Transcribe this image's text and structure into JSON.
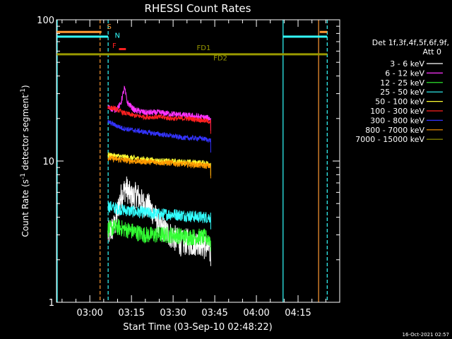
{
  "chart_data": {
    "type": "line",
    "title": "RHESSI Count Rates",
    "xlabel": "Start Time (03-Sep-10 02:48:22)",
    "ylabel_parts": [
      "Count Rate (s",
      "-1",
      " detector segment",
      "-1",
      ")"
    ],
    "yscale": "log",
    "ylim": [
      1,
      100
    ],
    "xlim_min": [
      -12,
      90
    ],
    "y_ticks": [
      {
        "value": 1,
        "label": "1"
      },
      {
        "value": 10,
        "label": "10"
      },
      {
        "value": 100,
        "label": "100"
      }
    ],
    "x_ticks": [
      {
        "min": 0,
        "label": "03:00"
      },
      {
        "min": 15,
        "label": "03:15"
      },
      {
        "min": 30,
        "label": "03:30"
      },
      {
        "min": 45,
        "label": "03:45"
      },
      {
        "min": 60,
        "label": "04:00"
      },
      {
        "min": 75,
        "label": "04:15"
      }
    ],
    "legend_header": [
      "Det 1f,3f,4f,5f,6f,9f,",
      "Att 0"
    ],
    "series": [
      {
        "name": "3 - 6 keV",
        "color": "#ffffff",
        "start": 6.5,
        "end": 43.5,
        "points": [
          [
            6.5,
            3.0
          ],
          [
            9,
            3.5
          ],
          [
            11,
            5.5
          ],
          [
            13,
            6.5
          ],
          [
            15,
            5.5
          ],
          [
            17,
            5.8
          ],
          [
            19,
            5.0
          ],
          [
            21,
            4.8
          ],
          [
            23,
            4.3
          ],
          [
            25,
            3.5
          ],
          [
            27,
            3.2
          ],
          [
            29,
            3.0
          ],
          [
            31,
            2.8
          ],
          [
            33,
            2.6
          ],
          [
            35,
            2.7
          ],
          [
            37,
            2.6
          ],
          [
            39,
            2.7
          ],
          [
            41,
            2.5
          ],
          [
            43,
            2.4
          ],
          [
            43.5,
            2.2
          ]
        ],
        "noise": 0.22
      },
      {
        "name": "6 - 12 keV",
        "color": "#ff33ff",
        "start": 6.5,
        "end": 43.5,
        "points": [
          [
            6.5,
            24
          ],
          [
            9,
            23
          ],
          [
            11,
            25
          ],
          [
            12.5,
            33
          ],
          [
            13.5,
            26
          ],
          [
            16,
            23
          ],
          [
            20,
            22
          ],
          [
            25,
            22
          ],
          [
            30,
            21.5
          ],
          [
            35,
            21
          ],
          [
            40,
            20.5
          ],
          [
            43.5,
            20
          ]
        ],
        "noise": 0.05
      },
      {
        "name": "12 - 25 keV",
        "color": "#33ff33",
        "start": 6.5,
        "end": 43.5,
        "points": [
          [
            6.5,
            3.3
          ],
          [
            10,
            3.4
          ],
          [
            15,
            3.2
          ],
          [
            20,
            3.0
          ],
          [
            25,
            3.0
          ],
          [
            30,
            3.0
          ],
          [
            35,
            2.9
          ],
          [
            40,
            2.9
          ],
          [
            43.5,
            2.8
          ]
        ],
        "noise": 0.14
      },
      {
        "name": "25 - 50 keV",
        "color": "#33ffff",
        "start": 6.5,
        "end": 43.5,
        "points": [
          [
            6.5,
            4.8
          ],
          [
            10,
            4.6
          ],
          [
            15,
            4.4
          ],
          [
            20,
            4.3
          ],
          [
            25,
            4.2
          ],
          [
            30,
            4.2
          ],
          [
            35,
            4.1
          ],
          [
            40,
            4.0
          ],
          [
            43.5,
            4.0
          ]
        ],
        "noise": 0.1
      },
      {
        "name": "50 - 100 keV",
        "color": "#ffff33",
        "start": 6.5,
        "end": 43.5,
        "points": [
          [
            6.5,
            11
          ],
          [
            15,
            10.5
          ],
          [
            25,
            10
          ],
          [
            35,
            9.8
          ],
          [
            43.5,
            9.6
          ]
        ],
        "noise": 0.05
      },
      {
        "name": "100 - 300 keV",
        "color": "#ff2020",
        "start": 6.5,
        "end": 43.5,
        "points": [
          [
            6.5,
            24
          ],
          [
            9,
            23.5
          ],
          [
            12,
            22
          ],
          [
            16,
            21
          ],
          [
            20,
            20.5
          ],
          [
            25,
            20.5
          ],
          [
            30,
            20
          ],
          [
            35,
            20
          ],
          [
            40,
            19.5
          ],
          [
            43.5,
            19
          ]
        ],
        "noise": 0.04
      },
      {
        "name": "300 - 800 keV",
        "color": "#3333ff",
        "start": 6.5,
        "end": 43.5,
        "points": [
          [
            6.5,
            19
          ],
          [
            9,
            18
          ],
          [
            12,
            17
          ],
          [
            16,
            16.5
          ],
          [
            20,
            16
          ],
          [
            25,
            15.5
          ],
          [
            30,
            15
          ],
          [
            35,
            14.5
          ],
          [
            40,
            14.5
          ],
          [
            43.5,
            14
          ]
        ],
        "noise": 0.04
      },
      {
        "name": "800 - 7000 keV",
        "color": "#ff9900",
        "start": 6.5,
        "end": 43.5,
        "points": [
          [
            6.5,
            10.5
          ],
          [
            15,
            10
          ],
          [
            25,
            9.8
          ],
          [
            35,
            9.5
          ],
          [
            43.5,
            9.2
          ]
        ],
        "noise": 0.05
      },
      {
        "name": "7000 - 15000 keV",
        "color": "#999900",
        "start": null,
        "end": null,
        "points": [],
        "noise": 0
      }
    ],
    "vertical_lines": [
      {
        "min": -12,
        "color": "#33ffff",
        "dash": false
      },
      {
        "min": 3.7,
        "color": "#ff9933",
        "dash": true
      },
      {
        "min": 6.6,
        "color": "#33ffff",
        "dash": true
      },
      {
        "min": 69.6,
        "color": "#33ffff",
        "dash": false
      },
      {
        "min": 82.4,
        "color": "#ff9933",
        "dash": false
      },
      {
        "min": 85.5,
        "color": "#33ffff",
        "dash": true
      }
    ],
    "flag_bars": [
      {
        "color": "#ff9933",
        "y": 82,
        "segments": [
          [
            -12,
            4.2
          ],
          [
            82.8,
            85.5
          ]
        ]
      },
      {
        "color": "#33ffff",
        "y": 76,
        "segments": [
          [
            -12,
            6.6
          ],
          [
            69.6,
            85.5
          ]
        ]
      },
      {
        "color": "#999900",
        "y": 57,
        "segments": [
          [
            -12,
            85.5
          ]
        ]
      },
      {
        "color": "#ff2020",
        "y": 62,
        "segments": [
          [
            10.5,
            13
          ]
        ]
      }
    ],
    "flag_labels": [
      {
        "text": "S",
        "min": 6.2,
        "y": 90,
        "color": "#ff9933"
      },
      {
        "text": "N",
        "min": 9.0,
        "y": 78,
        "color": "#33ffff"
      },
      {
        "text": "F",
        "min": 8.1,
        "y": 66,
        "color": "#ff2020"
      },
      {
        "text": "FD1",
        "min": 38.5,
        "y": 64,
        "color": "#999900"
      },
      {
        "text": "FD2",
        "min": 44.5,
        "y": 54,
        "color": "#999900"
      }
    ]
  },
  "footer": {
    "timestamp": "16-Oct-2021 02:57"
  }
}
